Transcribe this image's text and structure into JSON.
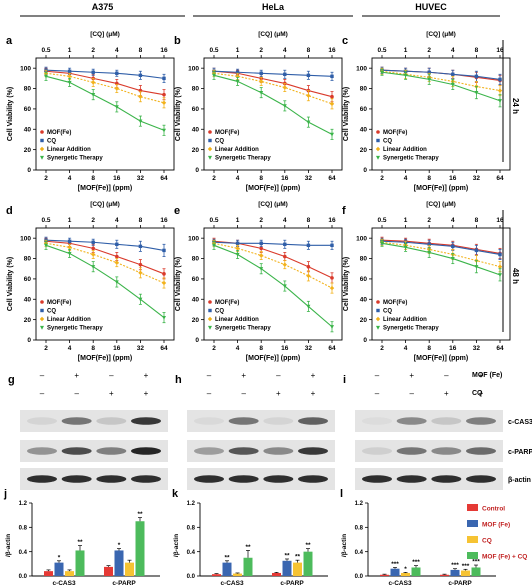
{
  "figure": {
    "column_titles": [
      "A375",
      "HeLa",
      "HUVEC"
    ],
    "row_labels": [
      "24 h",
      "48 h"
    ],
    "top_axis_label": "[CQ] (μM)",
    "bottom_axis_label": "[MOF(Fe)] (ppm)",
    "y_axis_label": "Cell Viability (%)",
    "cq_ticks": [
      "0.5",
      "1",
      "2",
      "4",
      "8",
      "16"
    ],
    "mof_ticks": [
      "2",
      "4",
      "8",
      "16",
      "32",
      "64"
    ],
    "y_ticks": [
      "0",
      "20",
      "40",
      "60",
      "80",
      "100"
    ],
    "legend_labels": [
      "MOF(Fe)",
      "CQ",
      "Linear Addition",
      "Synergetic Therapy"
    ],
    "wb_treatment_labels": [
      "MOF (Fe)",
      "CQ"
    ],
    "wb_signs": {
      "mof": [
        "–",
        "+",
        "–",
        "+"
      ],
      "cq": [
        "–",
        "–",
        "+",
        "+"
      ]
    },
    "wb_bands": [
      "c-CAS3",
      "c-PARP",
      "β-actin"
    ],
    "bar_ylabel": "/β-actin",
    "bar_categories": [
      "c-CAS3",
      "c-PARP"
    ],
    "bar_legend": [
      "Control",
      "MOF (Fe)",
      "CQ",
      "MOF (Fe) + CQ"
    ],
    "bar_yticks": [
      "0.0",
      "0.4",
      "0.8",
      "1.2"
    ],
    "colors": {
      "mof": "#d93a2b",
      "cq": "#2f5ea8",
      "linear": "#f2b21b",
      "synergy": "#3bb44a",
      "bar_control": "#e53935",
      "bar_mof": "#3a66b0",
      "bar_cq": "#f6c333",
      "bar_combo": "#4dbb5c"
    }
  },
  "chart_data": [
    {
      "panel": "a",
      "type": "line",
      "cell_line": "A375",
      "time": "24 h",
      "x": [
        2,
        4,
        8,
        16,
        32,
        64
      ],
      "x_top": [
        0.5,
        1,
        2,
        4,
        8,
        16
      ],
      "ylim": [
        0,
        110
      ],
      "series": [
        {
          "name": "MOF(Fe)",
          "values": [
            97,
            95,
            90,
            85,
            78,
            74
          ],
          "err": [
            3,
            3,
            4,
            4,
            5,
            5
          ]
        },
        {
          "name": "CQ",
          "values": [
            98,
            97,
            96,
            95,
            93,
            90
          ],
          "err": [
            3,
            3,
            3,
            3,
            4,
            4
          ]
        },
        {
          "name": "Linear Addition",
          "values": [
            95,
            92,
            86,
            80,
            72,
            66
          ],
          "err": [
            3,
            3,
            4,
            4,
            5,
            5
          ]
        },
        {
          "name": "Synergetic Therapy",
          "values": [
            92,
            86,
            74,
            62,
            48,
            39
          ],
          "err": [
            4,
            4,
            5,
            5,
            5,
            5
          ]
        }
      ]
    },
    {
      "panel": "b",
      "type": "line",
      "cell_line": "HeLa",
      "time": "24 h",
      "x": [
        2,
        4,
        8,
        16,
        32,
        64
      ],
      "x_top": [
        0.5,
        1,
        2,
        4,
        8,
        16
      ],
      "ylim": [
        0,
        110
      ],
      "series": [
        {
          "name": "MOF(Fe)",
          "values": [
            97,
            95,
            90,
            85,
            78,
            72
          ],
          "err": [
            3,
            3,
            4,
            4,
            5,
            5
          ]
        },
        {
          "name": "CQ",
          "values": [
            97,
            96,
            95,
            94,
            93,
            92
          ],
          "err": [
            3,
            3,
            3,
            4,
            4,
            4
          ]
        },
        {
          "name": "Linear Addition",
          "values": [
            95,
            92,
            87,
            81,
            73,
            65
          ],
          "err": [
            3,
            3,
            4,
            4,
            5,
            5
          ]
        },
        {
          "name": "Synergetic Therapy",
          "values": [
            93,
            87,
            76,
            63,
            47,
            35
          ],
          "err": [
            4,
            4,
            5,
            5,
            5,
            5
          ]
        }
      ]
    },
    {
      "panel": "c",
      "type": "line",
      "cell_line": "HUVEC",
      "time": "24 h",
      "x": [
        2,
        4,
        8,
        16,
        32,
        64
      ],
      "x_top": [
        0.5,
        1,
        2,
        4,
        8,
        16
      ],
      "ylim": [
        0,
        110
      ],
      "series": [
        {
          "name": "MOF(Fe)",
          "values": [
            98,
            97,
            96,
            94,
            91,
            88
          ],
          "err": [
            3,
            3,
            4,
            4,
            5,
            5
          ]
        },
        {
          "name": "CQ",
          "values": [
            98,
            97,
            96,
            94,
            92,
            89
          ],
          "err": [
            3,
            3,
            4,
            4,
            5,
            5
          ]
        },
        {
          "name": "Linear Addition",
          "values": [
            97,
            94,
            91,
            87,
            82,
            78
          ],
          "err": [
            3,
            4,
            4,
            5,
            5,
            5
          ]
        },
        {
          "name": "Synergetic Therapy",
          "values": [
            96,
            93,
            89,
            84,
            76,
            68
          ],
          "err": [
            3,
            4,
            5,
            5,
            6,
            6
          ]
        }
      ]
    },
    {
      "panel": "d",
      "type": "line",
      "cell_line": "A375",
      "time": "48 h",
      "x": [
        2,
        4,
        8,
        16,
        32,
        64
      ],
      "x_top": [
        0.5,
        1,
        2,
        4,
        8,
        16
      ],
      "ylim": [
        0,
        110
      ],
      "series": [
        {
          "name": "MOF(Fe)",
          "values": [
            97,
            95,
            90,
            82,
            74,
            65
          ],
          "err": [
            3,
            3,
            4,
            4,
            5,
            5
          ]
        },
        {
          "name": "CQ",
          "values": [
            98,
            97,
            96,
            94,
            92,
            88
          ],
          "err": [
            3,
            3,
            3,
            4,
            5,
            6
          ]
        },
        {
          "name": "Linear Addition",
          "values": [
            95,
            91,
            84,
            76,
            66,
            56
          ],
          "err": [
            3,
            3,
            4,
            4,
            5,
            5
          ]
        },
        {
          "name": "Synergetic Therapy",
          "values": [
            93,
            85,
            72,
            57,
            40,
            22
          ],
          "err": [
            4,
            4,
            5,
            5,
            5,
            5
          ]
        }
      ]
    },
    {
      "panel": "e",
      "type": "line",
      "cell_line": "HeLa",
      "time": "48 h",
      "x": [
        2,
        4,
        8,
        16,
        32,
        64
      ],
      "x_top": [
        0.5,
        1,
        2,
        4,
        8,
        16
      ],
      "ylim": [
        0,
        110
      ],
      "series": [
        {
          "name": "MOF(Fe)",
          "values": [
            97,
            95,
            90,
            82,
            72,
            61
          ],
          "err": [
            3,
            3,
            4,
            4,
            5,
            5
          ]
        },
        {
          "name": "CQ",
          "values": [
            96,
            95,
            95,
            94,
            93,
            93
          ],
          "err": [
            3,
            3,
            3,
            4,
            4,
            4
          ]
        },
        {
          "name": "Linear Addition",
          "values": [
            95,
            90,
            83,
            74,
            63,
            51
          ],
          "err": [
            3,
            3,
            4,
            4,
            5,
            5
          ]
        },
        {
          "name": "Synergetic Therapy",
          "values": [
            93,
            84,
            70,
            53,
            33,
            13
          ],
          "err": [
            4,
            4,
            5,
            5,
            5,
            5
          ]
        }
      ]
    },
    {
      "panel": "f",
      "type": "line",
      "cell_line": "HUVEC",
      "time": "48 h",
      "x": [
        2,
        4,
        8,
        16,
        32,
        64
      ],
      "x_top": [
        0.5,
        1,
        2,
        4,
        8,
        16
      ],
      "ylim": [
        0,
        110
      ],
      "series": [
        {
          "name": "MOF(Fe)",
          "values": [
            98,
            97,
            95,
            93,
            89,
            85
          ],
          "err": [
            3,
            3,
            4,
            4,
            5,
            5
          ]
        },
        {
          "name": "CQ",
          "values": [
            97,
            96,
            94,
            92,
            88,
            84
          ],
          "err": [
            3,
            3,
            4,
            4,
            5,
            5
          ]
        },
        {
          "name": "Linear Addition",
          "values": [
            96,
            93,
            89,
            84,
            78,
            72
          ],
          "err": [
            3,
            4,
            4,
            5,
            5,
            5
          ]
        },
        {
          "name": "Synergetic Therapy",
          "values": [
            95,
            91,
            86,
            80,
            72,
            64
          ],
          "err": [
            3,
            4,
            5,
            5,
            6,
            6
          ]
        }
      ]
    },
    {
      "panel": "j",
      "type": "bar",
      "cell_line": "A375",
      "categories": [
        "c-CAS3",
        "c-PARP"
      ],
      "ylim": [
        0,
        1.2
      ],
      "series": [
        {
          "name": "Control",
          "values": [
            0.08,
            0.15
          ],
          "err": [
            0.02,
            0.02
          ]
        },
        {
          "name": "MOF (Fe)",
          "values": [
            0.22,
            0.42
          ],
          "err": [
            0.03,
            0.03
          ]
        },
        {
          "name": "CQ",
          "values": [
            0.08,
            0.22
          ],
          "err": [
            0.02,
            0.04
          ]
        },
        {
          "name": "MOF (Fe) + CQ",
          "values": [
            0.42,
            0.9
          ],
          "err": [
            0.08,
            0.06
          ]
        }
      ],
      "marks": [
        [
          "",
          "*",
          "",
          "**"
        ],
        [
          "",
          "*",
          "",
          "**"
        ]
      ]
    },
    {
      "panel": "k",
      "type": "bar",
      "cell_line": "HeLa",
      "categories": [
        "c-CAS3",
        "c-PARP"
      ],
      "ylim": [
        0,
        1.2
      ],
      "series": [
        {
          "name": "Control",
          "values": [
            0.03,
            0.05
          ],
          "err": [
            0.01,
            0.01
          ]
        },
        {
          "name": "MOF (Fe)",
          "values": [
            0.22,
            0.25
          ],
          "err": [
            0.03,
            0.03
          ]
        },
        {
          "name": "CQ",
          "values": [
            0.04,
            0.22
          ],
          "err": [
            0.01,
            0.04
          ]
        },
        {
          "name": "MOF (Fe) + CQ",
          "values": [
            0.3,
            0.4
          ],
          "err": [
            0.12,
            0.05
          ]
        }
      ],
      "marks": [
        [
          "",
          "**",
          "",
          "**"
        ],
        [
          "",
          "**",
          "**",
          "**"
        ]
      ]
    },
    {
      "panel": "l",
      "type": "bar",
      "cell_line": "HUVEC",
      "categories": [
        "c-CAS3",
        "c-PARP"
      ],
      "ylim": [
        0,
        1.2
      ],
      "series": [
        {
          "name": "Control",
          "values": [
            0.02,
            0.02
          ],
          "err": [
            0.01,
            0.01
          ]
        },
        {
          "name": "MOF (Fe)",
          "values": [
            0.12,
            0.1
          ],
          "err": [
            0.02,
            0.02
          ]
        },
        {
          "name": "CQ",
          "values": [
            0.05,
            0.09
          ],
          "err": [
            0.01,
            0.02
          ]
        },
        {
          "name": "MOF (Fe) + CQ",
          "values": [
            0.14,
            0.14
          ],
          "err": [
            0.03,
            0.04
          ]
        }
      ],
      "marks": [
        [
          "",
          "***",
          "*",
          "***"
        ],
        [
          "",
          "***",
          "***",
          "***"
        ]
      ]
    }
  ]
}
